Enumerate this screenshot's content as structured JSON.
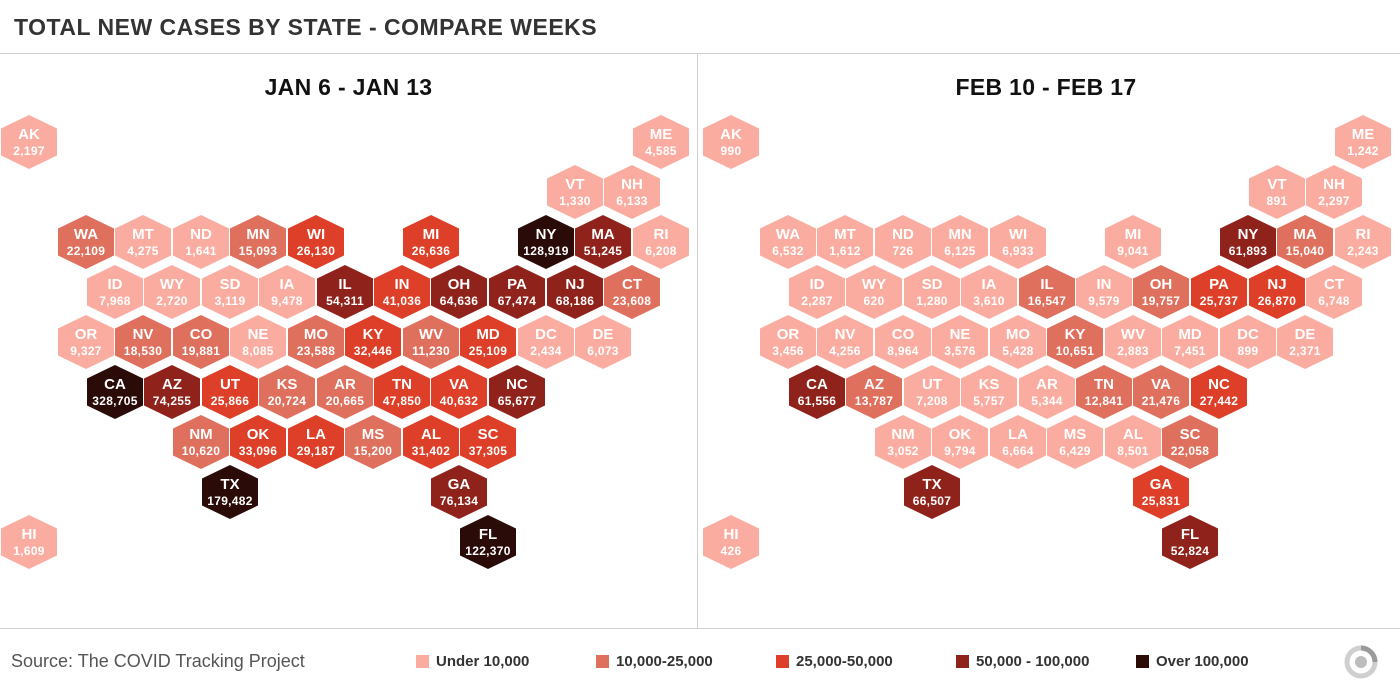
{
  "title": "TOTAL NEW CASES BY STATE - COMPARE WEEKS",
  "colors": {
    "under_10k": "#fbaca0",
    "10k_25k": "#e0705e",
    "25k_50k": "#dd3f28",
    "50k_100k": "#8f231b",
    "over_100k": "#2b0b08"
  },
  "panels": [
    {
      "title": "JAN 6 - JAN 13",
      "states": [
        {
          "abbr": "AK",
          "value": "2,197"
        },
        {
          "abbr": "ME",
          "value": "4,585"
        },
        {
          "abbr": "VT",
          "value": "1,330"
        },
        {
          "abbr": "NH",
          "value": "6,133"
        },
        {
          "abbr": "WA",
          "value": "22,109"
        },
        {
          "abbr": "MT",
          "value": "4,275"
        },
        {
          "abbr": "ND",
          "value": "1,641"
        },
        {
          "abbr": "MN",
          "value": "15,093"
        },
        {
          "abbr": "WI",
          "value": "26,130"
        },
        {
          "abbr": "MI",
          "value": "26,636"
        },
        {
          "abbr": "NY",
          "value": "128,919"
        },
        {
          "abbr": "MA",
          "value": "51,245"
        },
        {
          "abbr": "RI",
          "value": "6,208"
        },
        {
          "abbr": "ID",
          "value": "7,968"
        },
        {
          "abbr": "WY",
          "value": "2,720"
        },
        {
          "abbr": "SD",
          "value": "3,119"
        },
        {
          "abbr": "IA",
          "value": "9,478"
        },
        {
          "abbr": "IL",
          "value": "54,311"
        },
        {
          "abbr": "IN",
          "value": "41,036"
        },
        {
          "abbr": "OH",
          "value": "64,636"
        },
        {
          "abbr": "PA",
          "value": "67,474"
        },
        {
          "abbr": "NJ",
          "value": "68,186"
        },
        {
          "abbr": "CT",
          "value": "23,608"
        },
        {
          "abbr": "OR",
          "value": "9,327"
        },
        {
          "abbr": "NV",
          "value": "18,530"
        },
        {
          "abbr": "CO",
          "value": "19,881"
        },
        {
          "abbr": "NE",
          "value": "8,085"
        },
        {
          "abbr": "MO",
          "value": "23,588"
        },
        {
          "abbr": "KY",
          "value": "32,446"
        },
        {
          "abbr": "WV",
          "value": "11,230"
        },
        {
          "abbr": "MD",
          "value": "25,109"
        },
        {
          "abbr": "DC",
          "value": "2,434"
        },
        {
          "abbr": "DE",
          "value": "6,073"
        },
        {
          "abbr": "CA",
          "value": "328,705"
        },
        {
          "abbr": "AZ",
          "value": "74,255"
        },
        {
          "abbr": "UT",
          "value": "25,866"
        },
        {
          "abbr": "KS",
          "value": "20,724"
        },
        {
          "abbr": "AR",
          "value": "20,665"
        },
        {
          "abbr": "TN",
          "value": "47,850"
        },
        {
          "abbr": "VA",
          "value": "40,632"
        },
        {
          "abbr": "NC",
          "value": "65,677"
        },
        {
          "abbr": "NM",
          "value": "10,620"
        },
        {
          "abbr": "OK",
          "value": "33,096"
        },
        {
          "abbr": "LA",
          "value": "29,187"
        },
        {
          "abbr": "MS",
          "value": "15,200"
        },
        {
          "abbr": "AL",
          "value": "31,402"
        },
        {
          "abbr": "SC",
          "value": "37,305"
        },
        {
          "abbr": "TX",
          "value": "179,482"
        },
        {
          "abbr": "GA",
          "value": "76,134"
        },
        {
          "abbr": "HI",
          "value": "1,609"
        },
        {
          "abbr": "FL",
          "value": "122,370"
        }
      ]
    },
    {
      "title": "FEB 10 - FEB 17",
      "states": [
        {
          "abbr": "AK",
          "value": "990"
        },
        {
          "abbr": "ME",
          "value": "1,242"
        },
        {
          "abbr": "VT",
          "value": "891"
        },
        {
          "abbr": "NH",
          "value": "2,297"
        },
        {
          "abbr": "WA",
          "value": "6,532"
        },
        {
          "abbr": "MT",
          "value": "1,612"
        },
        {
          "abbr": "ND",
          "value": "726"
        },
        {
          "abbr": "MN",
          "value": "6,125"
        },
        {
          "abbr": "WI",
          "value": "6,933"
        },
        {
          "abbr": "MI",
          "value": "9,041"
        },
        {
          "abbr": "NY",
          "value": "61,893"
        },
        {
          "abbr": "MA",
          "value": "15,040"
        },
        {
          "abbr": "RI",
          "value": "2,243"
        },
        {
          "abbr": "ID",
          "value": "2,287"
        },
        {
          "abbr": "WY",
          "value": "620"
        },
        {
          "abbr": "SD",
          "value": "1,280"
        },
        {
          "abbr": "IA",
          "value": "3,610"
        },
        {
          "abbr": "IL",
          "value": "16,547"
        },
        {
          "abbr": "IN",
          "value": "9,579"
        },
        {
          "abbr": "OH",
          "value": "19,757"
        },
        {
          "abbr": "PA",
          "value": "25,737"
        },
        {
          "abbr": "NJ",
          "value": "26,870"
        },
        {
          "abbr": "CT",
          "value": "6,748"
        },
        {
          "abbr": "OR",
          "value": "3,456"
        },
        {
          "abbr": "NV",
          "value": "4,256"
        },
        {
          "abbr": "CO",
          "value": "8,964"
        },
        {
          "abbr": "NE",
          "value": "3,576"
        },
        {
          "abbr": "MO",
          "value": "5,428"
        },
        {
          "abbr": "KY",
          "value": "10,651"
        },
        {
          "abbr": "WV",
          "value": "2,883"
        },
        {
          "abbr": "MD",
          "value": "7,451"
        },
        {
          "abbr": "DC",
          "value": "899"
        },
        {
          "abbr": "DE",
          "value": "2,371"
        },
        {
          "abbr": "CA",
          "value": "61,556"
        },
        {
          "abbr": "AZ",
          "value": "13,787"
        },
        {
          "abbr": "UT",
          "value": "7,208"
        },
        {
          "abbr": "KS",
          "value": "5,757"
        },
        {
          "abbr": "AR",
          "value": "5,344"
        },
        {
          "abbr": "TN",
          "value": "12,841"
        },
        {
          "abbr": "VA",
          "value": "21,476"
        },
        {
          "abbr": "NC",
          "value": "27,442"
        },
        {
          "abbr": "NM",
          "value": "3,052"
        },
        {
          "abbr": "OK",
          "value": "9,794"
        },
        {
          "abbr": "LA",
          "value": "6,664"
        },
        {
          "abbr": "MS",
          "value": "6,429"
        },
        {
          "abbr": "AL",
          "value": "8,501"
        },
        {
          "abbr": "SC",
          "value": "22,058"
        },
        {
          "abbr": "TX",
          "value": "66,507"
        },
        {
          "abbr": "GA",
          "value": "25,831"
        },
        {
          "abbr": "HI",
          "value": "426"
        },
        {
          "abbr": "FL",
          "value": "52,824"
        }
      ]
    }
  ],
  "footer": {
    "source": "Source: The COVID Tracking Project",
    "legend": [
      {
        "label": "Under 10,000",
        "color": "#fbaca0"
      },
      {
        "label": "10,000-25,000",
        "color": "#e0705e"
      },
      {
        "label": "25,000-50,000",
        "color": "#dd3f28"
      },
      {
        "label": "50,000 - 100,000",
        "color": "#8f231b"
      },
      {
        "label": "Over 100,000",
        "color": "#2b0b08"
      }
    ],
    "logo_icon": "ctp-logo-icon"
  }
}
